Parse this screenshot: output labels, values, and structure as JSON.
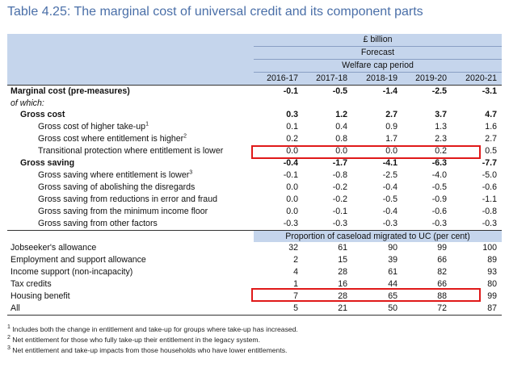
{
  "title": "Table 4.25: The marginal cost of universal credit and its component parts",
  "header": {
    "unit": "£ billion",
    "forecast": "Forecast",
    "welfare_cap": "Welfare cap period",
    "years": [
      "2016-17",
      "2017-18",
      "2018-19",
      "2019-20",
      "2020-21"
    ]
  },
  "rows": [
    {
      "label": "Marginal cost (pre-measures)",
      "values": [
        "-0.1",
        "-0.5",
        "-1.4",
        "-2.5",
        "-3.1"
      ]
    },
    {
      "label": "of which:",
      "values": [
        "",
        "",
        "",
        "",
        ""
      ]
    },
    {
      "label": "Gross cost",
      "values": [
        "0.3",
        "1.2",
        "2.7",
        "3.7",
        "4.7"
      ]
    },
    {
      "label": "Gross cost of higher take-up",
      "sup": "1",
      "values": [
        "0.1",
        "0.4",
        "0.9",
        "1.3",
        "1.6"
      ]
    },
    {
      "label": "Gross cost where entitlement is higher",
      "sup": "2",
      "values": [
        "0.2",
        "0.8",
        "1.7",
        "2.3",
        "2.7"
      ]
    },
    {
      "label": "Transitional protection where entitlement is lower",
      "values": [
        "0.0",
        "0.0",
        "0.0",
        "0.2",
        "0.5"
      ]
    },
    {
      "label": "Gross saving",
      "values": [
        "-0.4",
        "-1.7",
        "-4.1",
        "-6.3",
        "-7.7"
      ]
    },
    {
      "label": "Gross saving where entitlement is lower",
      "sup": "3",
      "values": [
        "-0.1",
        "-0.8",
        "-2.5",
        "-4.0",
        "-5.0"
      ]
    },
    {
      "label": "Gross saving of abolishing the disregards",
      "values": [
        "0.0",
        "-0.2",
        "-0.4",
        "-0.5",
        "-0.6"
      ]
    },
    {
      "label": "Gross saving from reductions in error and fraud",
      "values": [
        "0.0",
        "-0.2",
        "-0.5",
        "-0.9",
        "-1.1"
      ]
    },
    {
      "label": "Gross saving from the minimum income floor",
      "values": [
        "0.0",
        "-0.1",
        "-0.4",
        "-0.6",
        "-0.8"
      ]
    },
    {
      "label": "Gross saving from other factors",
      "values": [
        "-0.3",
        "-0.3",
        "-0.3",
        "-0.3",
        "-0.3"
      ]
    }
  ],
  "caseload": {
    "heading": "Proportion of caseload migrated to UC (per cent)",
    "rows": [
      {
        "label": "Jobseeker's allowance",
        "values": [
          "32",
          "61",
          "90",
          "99",
          "100"
        ]
      },
      {
        "label": "Employment and support allowance",
        "values": [
          "2",
          "15",
          "39",
          "66",
          "89"
        ]
      },
      {
        "label": "Income support (non-incapacity)",
        "values": [
          "4",
          "28",
          "61",
          "82",
          "93"
        ]
      },
      {
        "label": "Tax credits",
        "values": [
          "1",
          "16",
          "44",
          "66",
          "80"
        ]
      },
      {
        "label": "Housing benefit",
        "values": [
          "7",
          "28",
          "65",
          "88",
          "99"
        ]
      },
      {
        "label": "All",
        "values": [
          "5",
          "21",
          "50",
          "72",
          "87"
        ]
      }
    ]
  },
  "footnotes": [
    {
      "num": "1",
      "text": "Includes both the change in entitlement and take-up for groups where take-up has increased."
    },
    {
      "num": "2",
      "text": "Net entitlement for those who fully take-up their entitlement in the legacy system."
    },
    {
      "num": "3",
      "text": "Net entitlement and take-up impacts from those households who have lower entitlements."
    }
  ],
  "highlight_color": "#e01919",
  "header_color": "#c5d5ec"
}
